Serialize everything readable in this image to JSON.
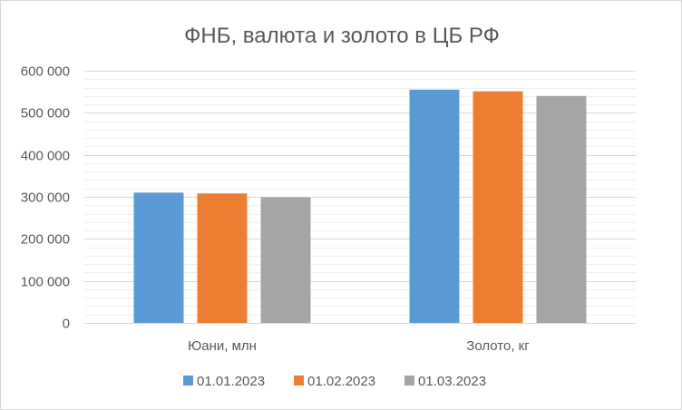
{
  "chart_data": {
    "type": "bar",
    "title": "ФНБ, валюта и золото в ЦБ РФ",
    "categories": [
      "Юани, млн",
      "Золото, кг"
    ],
    "series": [
      {
        "name": "01.01.2023",
        "color": "#5b9bd5",
        "values": [
          310000,
          555000
        ]
      },
      {
        "name": "01.02.2023",
        "color": "#ed7d31",
        "values": [
          308000,
          551000
        ]
      },
      {
        "name": "01.03.2023",
        "color": "#a5a5a5",
        "values": [
          299000,
          540000
        ]
      }
    ],
    "xlabel": "",
    "ylabel": "",
    "ylim": [
      0,
      600000
    ],
    "yticks": [
      {
        "value": 0,
        "label": "0"
      },
      {
        "value": 100000,
        "label": "100 000"
      },
      {
        "value": 200000,
        "label": "200 000"
      },
      {
        "value": 300000,
        "label": "300 000"
      },
      {
        "value": 400000,
        "label": "400 000"
      },
      {
        "value": 500000,
        "label": "500 000"
      },
      {
        "value": 600000,
        "label": "600 000"
      }
    ],
    "minor_step": 20000,
    "grid": true,
    "legend_position": "bottom"
  }
}
